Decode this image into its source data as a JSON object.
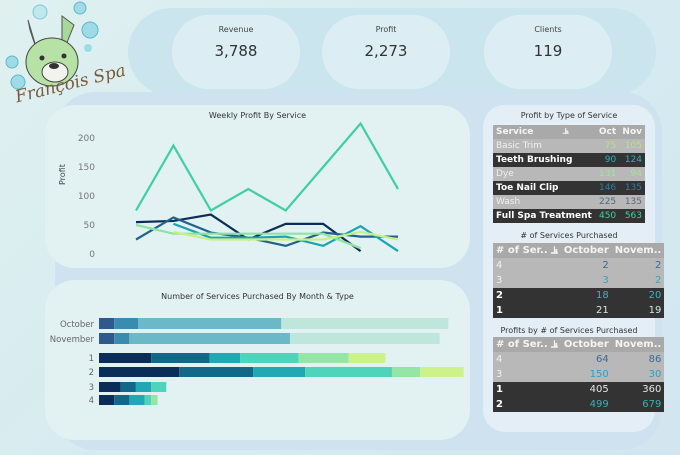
{
  "brand": {
    "name": "François Spa"
  },
  "kpis": [
    {
      "label": "Revenue",
      "value": "3,788"
    },
    {
      "label": "Profit",
      "value": "2,273"
    },
    {
      "label": "Clients",
      "value": "119"
    }
  ],
  "line_chart": {
    "chart_data": {
      "type": "line",
      "title": "Weekly Profit By Service",
      "ylabel": "Profit",
      "xlabel": "",
      "ylim": [
        0,
        230
      ],
      "yticks": [
        0,
        50,
        100,
        150,
        200
      ],
      "grid": false,
      "x": [
        1,
        2,
        3,
        4,
        5,
        6,
        7,
        8
      ],
      "series": [
        {
          "color": "#3fcfa3",
          "values": [
            75,
            187,
            75,
            112,
            75,
            150,
            225,
            112
          ]
        },
        {
          "color": "#0b2e59",
          "values": [
            55,
            57,
            68,
            25,
            52,
            52,
            5,
            null
          ]
        },
        {
          "color": "#25618e",
          "values": [
            25,
            63,
            37,
            28,
            14,
            37,
            30,
            30
          ]
        },
        {
          "color": "#1ba3b2",
          "values": [
            null,
            52,
            28,
            28,
            30,
            14,
            48,
            5
          ]
        },
        {
          "color": "#8fe3a0",
          "values": [
            50,
            35,
            35,
            35,
            35,
            35,
            10,
            null
          ]
        },
        {
          "color": "#c8f08a",
          "values": [
            null,
            38,
            25,
            25,
            25,
            25,
            38,
            25
          ]
        }
      ]
    }
  },
  "bar_chart": {
    "chart_data": {
      "type": "bar",
      "orientation": "horizontal",
      "stacked": true,
      "title": "Number of Services Purchased By Month & Type",
      "groups": [
        {
          "categories": [
            "October",
            "November"
          ],
          "colors": [
            "#2d5a8a",
            "#3a8bb0",
            "#6bb8c8",
            "#bfe6da"
          ],
          "values": [
            [
              7,
              11,
              66,
              77
            ],
            [
              7,
              7,
              74,
              69
            ]
          ]
        },
        {
          "categories": [
            "1",
            "2",
            "3",
            "4"
          ],
          "colors": [
            "#0b2e59",
            "#13688a",
            "#22a7b5",
            "#4fd4bb",
            "#95e6a4",
            "#cdf28a"
          ],
          "values": [
            [
              24,
              27,
              14,
              27,
              23,
              17
            ],
            [
              37,
              34,
              24,
              40,
              13,
              20
            ],
            [
              10,
              7,
              7,
              7
            ],
            [
              7,
              7,
              7,
              3,
              3
            ]
          ]
        }
      ]
    }
  },
  "profit_by_type": {
    "title": "Profit by Type of Service",
    "headers": [
      "Service",
      "Oct",
      "Nov"
    ],
    "rows": [
      {
        "service": "Basic Trim",
        "oct": "75",
        "nov": "105",
        "color": "#b9e37a",
        "dark": false
      },
      {
        "service": "Teeth Brushing",
        "oct": "90",
        "nov": "124",
        "color": "#2ab0b8",
        "dark": true
      },
      {
        "service": "Dye",
        "oct": "131",
        "nov": "94",
        "color": "#a2e3a0",
        "dark": false
      },
      {
        "service": "Toe Nail Clip",
        "oct": "146",
        "nov": "135",
        "color": "#2a7fa0",
        "dark": true
      },
      {
        "service": "Wash",
        "oct": "225",
        "nov": "135",
        "color": "#56678a",
        "dark": false
      },
      {
        "service": "Full Spa Treatment",
        "oct": "450",
        "nov": "563",
        "color": "#40d0a0",
        "dark": true
      }
    ]
  },
  "services_purchased": {
    "title": "# of Services Purchased",
    "headers": [
      "# of Ser..",
      "October",
      "Novem.."
    ],
    "rows": [
      {
        "n": "4",
        "oct": "2",
        "nov": "2",
        "color": "#3a6a9a",
        "dark": false
      },
      {
        "n": "3",
        "oct": "3",
        "nov": "2",
        "color": "#3aa0c0",
        "dark": false
      },
      {
        "n": "2",
        "oct": "18",
        "nov": "20",
        "color": "#40b0c0",
        "dark": true
      },
      {
        "n": "1",
        "oct": "21",
        "nov": "19",
        "color": "#d4e8dc",
        "dark": true
      }
    ]
  },
  "profits_by_count": {
    "title": "Profits by # of Services Purchased",
    "headers": [
      "# of Ser..",
      "October",
      "Novem.."
    ],
    "rows": [
      {
        "n": "4",
        "oct": "64",
        "nov": "86",
        "color": "#3a6a9a",
        "dark": false
      },
      {
        "n": "3",
        "oct": "150",
        "nov": "30",
        "color": "#2aa0c8",
        "dark": false
      },
      {
        "n": "1",
        "oct": "405",
        "nov": "360",
        "color": "#e8e8e8",
        "dark": true
      },
      {
        "n": "2",
        "oct": "499",
        "nov": "679",
        "color": "#3ab0b0",
        "dark": true
      }
    ]
  }
}
